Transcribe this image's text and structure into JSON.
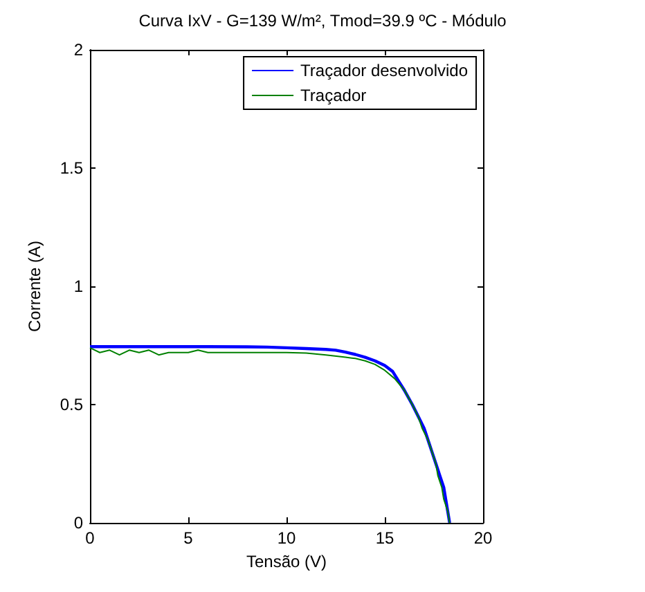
{
  "chart_data": {
    "type": "line",
    "title": "Curva IxV - G=139 W/m², Tmod=39.9 ºC - Módulo",
    "xlabel": "Tensão (V)",
    "ylabel": "Corrente (A)",
    "xlim": [
      0,
      20
    ],
    "xticks": [
      0,
      5,
      10,
      15,
      20
    ],
    "ylim": [
      0,
      2
    ],
    "yticks": [
      0,
      0.5,
      1,
      1.5,
      2
    ],
    "grid": false,
    "legend": "top right",
    "marker": "none",
    "line_style": "solid",
    "series": [
      {
        "name": "Traçador desenvolvido",
        "color": "#0000ff",
        "x": [
          0,
          1,
          2,
          4,
          6,
          8,
          9,
          10,
          11,
          12,
          12.5,
          13,
          13.5,
          14,
          14.5,
          15,
          15.4,
          15.7,
          16,
          16.4,
          16.7,
          17,
          17.2,
          17.4,
          17.6,
          17.8,
          18,
          18.1,
          18.2,
          18.3
        ],
        "values": [
          0.745,
          0.745,
          0.745,
          0.745,
          0.745,
          0.744,
          0.743,
          0.74,
          0.737,
          0.733,
          0.73,
          0.722,
          0.712,
          0.7,
          0.685,
          0.665,
          0.64,
          0.6,
          0.56,
          0.5,
          0.45,
          0.4,
          0.35,
          0.3,
          0.25,
          0.2,
          0.15,
          0.1,
          0.05,
          0
        ]
      },
      {
        "name": "Traçador",
        "color": "#008000",
        "x": [
          0,
          0.5,
          1,
          1.5,
          2,
          2.5,
          3,
          3.5,
          4,
          5,
          5.5,
          6,
          7,
          8,
          9,
          10,
          11,
          12,
          13,
          13.5,
          14,
          14.5,
          15,
          15.5,
          16,
          16.4,
          16.7,
          16.9,
          17.2,
          17.4,
          17.6,
          17.7,
          17.9,
          18,
          18.2,
          18.3
        ],
        "values": [
          0.74,
          0.72,
          0.73,
          0.71,
          0.73,
          0.72,
          0.73,
          0.71,
          0.72,
          0.72,
          0.73,
          0.72,
          0.72,
          0.72,
          0.72,
          0.72,
          0.718,
          0.71,
          0.7,
          0.695,
          0.685,
          0.67,
          0.645,
          0.61,
          0.56,
          0.5,
          0.45,
          0.4,
          0.35,
          0.3,
          0.25,
          0.2,
          0.15,
          0.1,
          0.05,
          0
        ]
      }
    ]
  }
}
